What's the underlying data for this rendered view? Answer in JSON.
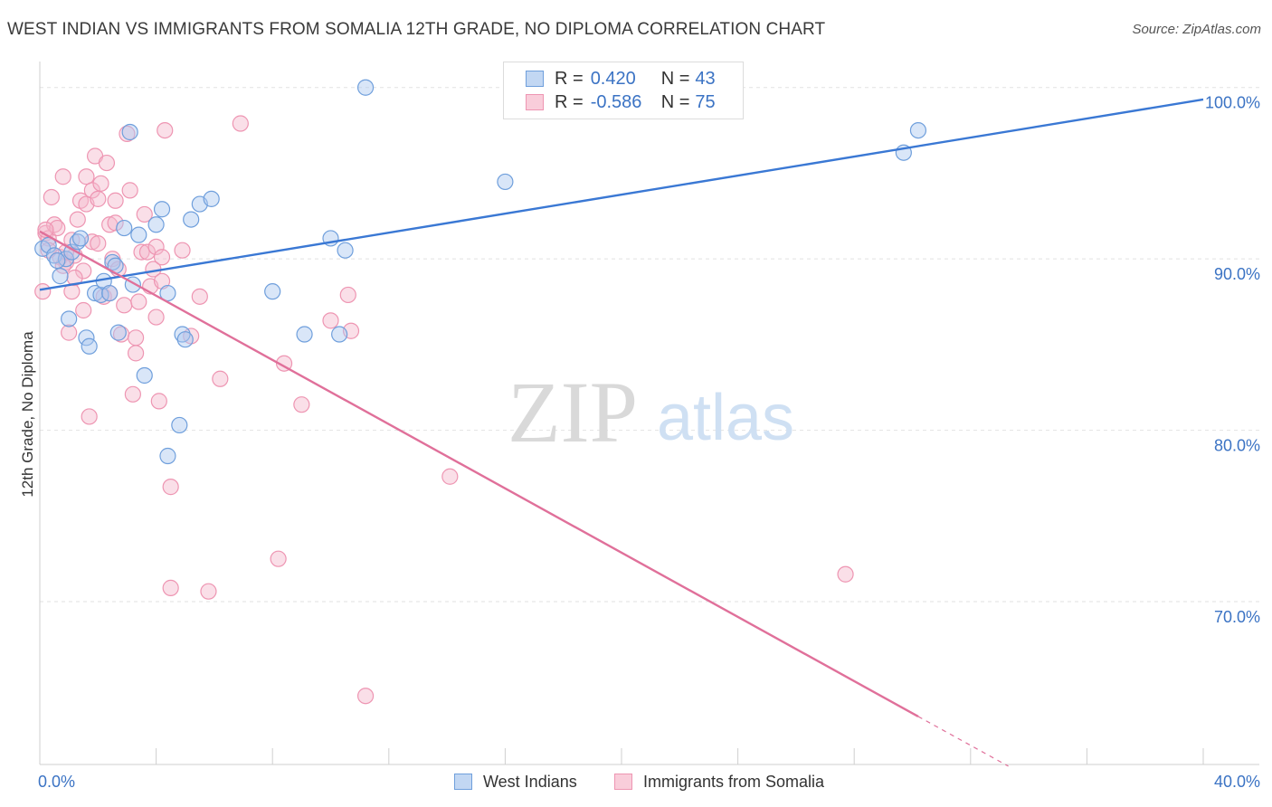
{
  "header": {
    "title": "WEST INDIAN VS IMMIGRANTS FROM SOMALIA 12TH GRADE, NO DIPLOMA CORRELATION CHART",
    "source": "Source: ZipAtlas.com"
  },
  "legend": {
    "r_label": "R =",
    "n_label": "N =",
    "rows": [
      {
        "r": "0.420",
        "n": "43"
      },
      {
        "r": "-0.586",
        "n": "75"
      }
    ]
  },
  "watermark": {
    "zip": "ZIP",
    "atlas": "atlas"
  },
  "chart_data": {
    "type": "scatter",
    "title": "WEST INDIAN VS IMMIGRANTS FROM SOMALIA 12TH GRADE, NO DIPLOMA CORRELATION CHART",
    "xlabel": "",
    "ylabel": "12th Grade, No Diploma",
    "xlim": [
      0,
      40
    ],
    "ylim": [
      60.5,
      101.2
    ],
    "x_tick_labels": [
      "0.0%",
      "40.0%"
    ],
    "y_ticks": [
      70,
      80,
      90,
      100
    ],
    "y_tick_labels": [
      "70.0%",
      "80.0%",
      "90.0%",
      "100.0%"
    ],
    "grid": true,
    "legend_position": "top-center",
    "colors": {
      "west_indian_fill": "#aac8f0",
      "west_indian_stroke": "#6f9fdc",
      "west_indian_line": "#3a78d4",
      "somalia_fill": "#f5b8cc",
      "somalia_stroke": "#ee95b2",
      "somalia_line": "#e0709a",
      "tick_label": "#3b73c4"
    },
    "series": [
      {
        "name": "West Indians",
        "trend": {
          "x": [
            0,
            40
          ],
          "y": [
            88.2,
            99.3
          ]
        },
        "points": [
          [
            0.1,
            90.6
          ],
          [
            0.3,
            90.8
          ],
          [
            0.5,
            90.2
          ],
          [
            0.7,
            89.0
          ],
          [
            0.9,
            90.0
          ],
          [
            1.0,
            86.5
          ],
          [
            1.1,
            90.4
          ],
          [
            1.3,
            91.0
          ],
          [
            1.4,
            91.2
          ],
          [
            1.6,
            85.4
          ],
          [
            1.7,
            84.9
          ],
          [
            1.9,
            88.0
          ],
          [
            2.1,
            87.9
          ],
          [
            2.2,
            88.7
          ],
          [
            2.4,
            88.0
          ],
          [
            2.5,
            89.8
          ],
          [
            2.6,
            89.6
          ],
          [
            2.7,
            85.7
          ],
          [
            2.9,
            91.8
          ],
          [
            3.1,
            97.4
          ],
          [
            3.2,
            88.5
          ],
          [
            3.4,
            91.4
          ],
          [
            3.6,
            83.2
          ],
          [
            4.0,
            92.0
          ],
          [
            4.2,
            92.9
          ],
          [
            4.4,
            88.0
          ],
          [
            4.8,
            80.3
          ],
          [
            4.9,
            85.6
          ],
          [
            5.0,
            85.3
          ],
          [
            4.4,
            78.5
          ],
          [
            5.2,
            92.3
          ],
          [
            5.5,
            93.2
          ],
          [
            5.9,
            93.5
          ],
          [
            8.0,
            88.1
          ],
          [
            9.1,
            85.6
          ],
          [
            10.0,
            91.2
          ],
          [
            10.3,
            85.6
          ],
          [
            10.5,
            90.5
          ],
          [
            11.2,
            100.0
          ],
          [
            16.0,
            94.5
          ],
          [
            29.7,
            96.2
          ],
          [
            30.2,
            97.5
          ],
          [
            0.6,
            89.9
          ]
        ]
      },
      {
        "name": "Immigrants from Somalia",
        "trend": {
          "x": [
            0,
            30.2
          ],
          "y": [
            91.6,
            63.3
          ]
        },
        "trend_dashed": {
          "x": [
            30.2,
            33.3
          ],
          "y": [
            63.3,
            60.4
          ]
        },
        "points": [
          [
            0.1,
            88.1
          ],
          [
            0.2,
            91.5
          ],
          [
            0.3,
            91.2
          ],
          [
            0.4,
            93.6
          ],
          [
            0.5,
            92.0
          ],
          [
            0.6,
            91.8
          ],
          [
            0.7,
            90.1
          ],
          [
            0.8,
            94.8
          ],
          [
            0.9,
            89.8
          ],
          [
            1.0,
            85.7
          ],
          [
            1.1,
            88.1
          ],
          [
            1.2,
            90.2
          ],
          [
            1.3,
            92.3
          ],
          [
            1.4,
            93.4
          ],
          [
            1.5,
            89.3
          ],
          [
            1.6,
            94.8
          ],
          [
            1.6,
            93.2
          ],
          [
            1.7,
            80.8
          ],
          [
            1.8,
            94.0
          ],
          [
            1.8,
            91.0
          ],
          [
            1.9,
            96.0
          ],
          [
            2.0,
            93.5
          ],
          [
            2.1,
            94.4
          ],
          [
            2.2,
            87.8
          ],
          [
            2.3,
            95.6
          ],
          [
            2.4,
            92.0
          ],
          [
            2.5,
            90.0
          ],
          [
            2.6,
            92.1
          ],
          [
            2.6,
            93.4
          ],
          [
            2.7,
            89.4
          ],
          [
            2.8,
            85.6
          ],
          [
            2.9,
            87.3
          ],
          [
            3.0,
            97.3
          ],
          [
            3.1,
            94.0
          ],
          [
            3.2,
            82.1
          ],
          [
            3.3,
            85.4
          ],
          [
            3.3,
            84.5
          ],
          [
            3.4,
            87.5
          ],
          [
            3.5,
            90.4
          ],
          [
            3.6,
            92.6
          ],
          [
            3.7,
            90.4
          ],
          [
            3.8,
            88.4
          ],
          [
            3.9,
            89.4
          ],
          [
            4.0,
            86.6
          ],
          [
            4.0,
            90.7
          ],
          [
            4.1,
            81.7
          ],
          [
            4.2,
            90.1
          ],
          [
            4.2,
            88.7
          ],
          [
            4.3,
            97.5
          ],
          [
            4.5,
            76.7
          ],
          [
            4.5,
            70.8
          ],
          [
            4.9,
            90.5
          ],
          [
            5.2,
            85.5
          ],
          [
            5.5,
            87.8
          ],
          [
            5.8,
            70.6
          ],
          [
            6.2,
            83.0
          ],
          [
            6.9,
            97.9
          ],
          [
            8.2,
            72.5
          ],
          [
            8.4,
            83.9
          ],
          [
            9.0,
            81.5
          ],
          [
            10.0,
            86.4
          ],
          [
            10.6,
            87.9
          ],
          [
            10.7,
            85.8
          ],
          [
            11.2,
            64.5
          ],
          [
            14.1,
            77.3
          ],
          [
            27.7,
            71.6
          ],
          [
            0.2,
            91.7
          ],
          [
            0.3,
            90.5
          ],
          [
            0.8,
            89.6
          ],
          [
            1.2,
            88.9
          ],
          [
            1.5,
            87.0
          ],
          [
            2.0,
            90.9
          ],
          [
            2.4,
            88.0
          ],
          [
            0.9,
            90.4
          ],
          [
            1.1,
            91.1
          ]
        ]
      }
    ]
  },
  "bottom_legend": {
    "items": [
      {
        "label": "West Indians"
      },
      {
        "label": "Immigrants from Somalia"
      }
    ]
  }
}
